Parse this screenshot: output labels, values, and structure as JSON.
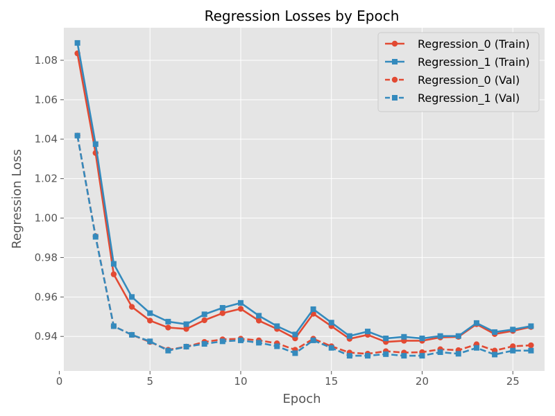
{
  "chart_data": {
    "type": "line",
    "title": "Regression Losses by Epoch",
    "xlabel": "Epoch",
    "ylabel": "Regression Loss",
    "xlim": [
      0.25,
      26.75
    ],
    "ylim": [
      0.9225,
      1.0965
    ],
    "xticks": [
      0,
      5,
      10,
      15,
      20,
      25
    ],
    "yticks": [
      0.94,
      0.96,
      0.98,
      1.0,
      1.02,
      1.04,
      1.06,
      1.08
    ],
    "ytick_labels": [
      "0.94",
      "0.96",
      "0.98",
      "1.00",
      "1.02",
      "1.04",
      "1.06",
      "1.08"
    ],
    "grid": true,
    "legend_position": "top-right",
    "x": [
      1,
      2,
      3,
      4,
      5,
      6,
      7,
      8,
      9,
      10,
      11,
      12,
      13,
      14,
      15,
      16,
      17,
      18,
      19,
      20,
      21,
      22,
      23,
      24,
      25,
      26
    ],
    "series": [
      {
        "name": "Regression_0 (Train)",
        "color": "#E24A33",
        "linestyle": "solid",
        "marker": "circle",
        "values": [
          1.0835,
          1.033,
          0.9715,
          0.955,
          0.948,
          0.9445,
          0.9438,
          0.9482,
          0.9518,
          0.954,
          0.948,
          0.9438,
          0.939,
          0.9515,
          0.9452,
          0.9388,
          0.9408,
          0.9372,
          0.9378,
          0.9378,
          0.9395,
          0.9398,
          0.9462,
          0.9412,
          0.9428,
          0.9448
        ]
      },
      {
        "name": "Regression_1 (Train)",
        "color": "#348ABD",
        "linestyle": "solid",
        "marker": "square",
        "values": [
          1.0888,
          1.0375,
          0.9768,
          0.96,
          0.9518,
          0.9475,
          0.9462,
          0.9512,
          0.9545,
          0.957,
          0.9505,
          0.9452,
          0.941,
          0.9538,
          0.947,
          0.9402,
          0.9425,
          0.939,
          0.9398,
          0.939,
          0.9402,
          0.9402,
          0.9468,
          0.9422,
          0.9435,
          0.9452
        ]
      },
      {
        "name": "Regression_0 (Val)",
        "color": "#E24A33",
        "linestyle": "dashed",
        "marker": "circle",
        "values": [
          1.0418,
          0.9908,
          0.9452,
          0.9408,
          0.9372,
          0.9332,
          0.9348,
          0.9372,
          0.9385,
          0.9388,
          0.938,
          0.9365,
          0.9332,
          0.9388,
          0.935,
          0.9318,
          0.9312,
          0.9325,
          0.9318,
          0.932,
          0.9335,
          0.933,
          0.936,
          0.9328,
          0.935,
          0.9355
        ]
      },
      {
        "name": "Regression_1 (Val)",
        "color": "#348ABD",
        "linestyle": "dashed",
        "marker": "square",
        "values": [
          1.0418,
          0.9905,
          0.9452,
          0.9408,
          0.9375,
          0.9328,
          0.9348,
          0.9362,
          0.9375,
          0.938,
          0.9368,
          0.935,
          0.9315,
          0.938,
          0.9342,
          0.9302,
          0.9302,
          0.931,
          0.9302,
          0.9302,
          0.932,
          0.9312,
          0.9342,
          0.9308,
          0.9328,
          0.9328
        ]
      }
    ]
  }
}
